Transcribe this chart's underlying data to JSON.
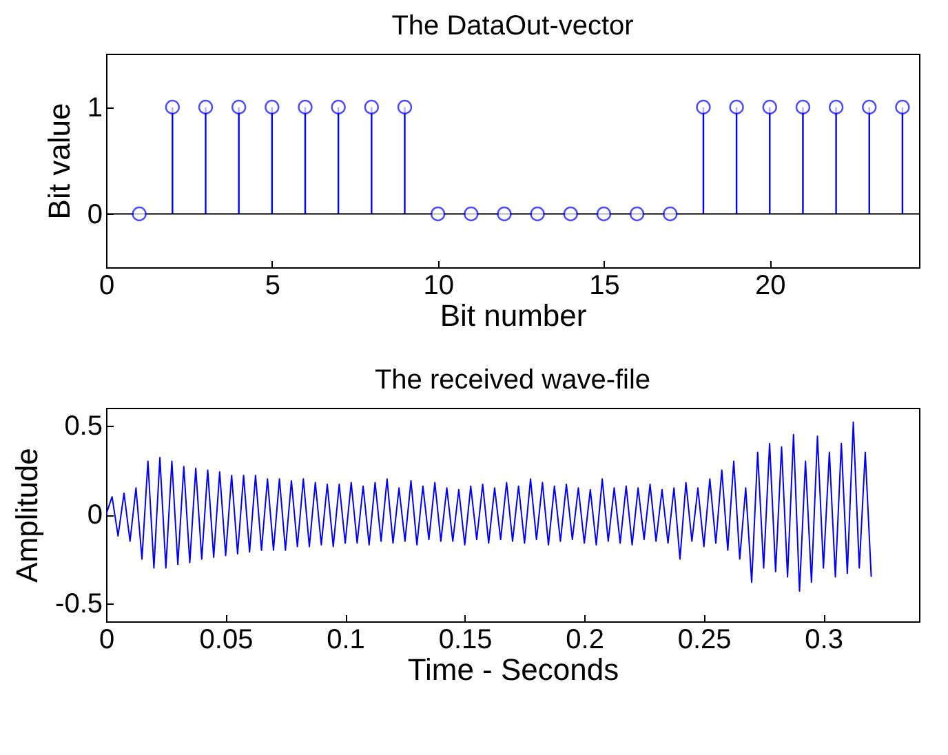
{
  "chart_data": [
    {
      "type": "lollipop",
      "title": "The DataOut-vector",
      "xlabel": "Bit number",
      "ylabel": "Bit value",
      "x": [
        1,
        2,
        3,
        4,
        5,
        6,
        7,
        8,
        9,
        10,
        11,
        12,
        13,
        14,
        15,
        16,
        17,
        18,
        19,
        20,
        21,
        22,
        23,
        24
      ],
      "series": [
        {
          "color": "#0000ff",
          "values": [
            0,
            1,
            1,
            1,
            1,
            1,
            1,
            1,
            1,
            0,
            0,
            0,
            0,
            0,
            0,
            0,
            0,
            1,
            1,
            1,
            1,
            1,
            1,
            1
          ]
        }
      ],
      "xlim": [
        0,
        24.5
      ],
      "xticks": [
        0,
        5,
        10,
        15,
        20
      ],
      "ylim": [
        -0.5,
        1.5
      ],
      "yticks": [
        0,
        1
      ],
      "marker": "circle"
    },
    {
      "type": "line",
      "title": "The received wave-file",
      "xlabel": "Time - Seconds",
      "ylabel": "Amplitude",
      "x": [
        0,
        0.0025,
        0.005,
        0.0075,
        0.01,
        0.0125,
        0.015,
        0.0175,
        0.02,
        0.0225,
        0.025,
        0.0275,
        0.03,
        0.0325,
        0.035,
        0.0375,
        0.04,
        0.0425,
        0.045,
        0.0475,
        0.05,
        0.0525,
        0.055,
        0.0575,
        0.06,
        0.0625,
        0.065,
        0.0675,
        0.07,
        0.0725,
        0.075,
        0.0775,
        0.08,
        0.0825,
        0.085,
        0.0875,
        0.09,
        0.0925,
        0.095,
        0.0975,
        0.1,
        0.1025,
        0.105,
        0.1075,
        0.11,
        0.1125,
        0.115,
        0.1175,
        0.12,
        0.1225,
        0.125,
        0.1275,
        0.13,
        0.1325,
        0.135,
        0.1375,
        0.14,
        0.1425,
        0.145,
        0.1475,
        0.15,
        0.1525,
        0.155,
        0.1575,
        0.16,
        0.1625,
        0.165,
        0.1675,
        0.17,
        0.1725,
        0.175,
        0.1775,
        0.18,
        0.1825,
        0.185,
        0.1875,
        0.19,
        0.1925,
        0.195,
        0.1975,
        0.2,
        0.2025,
        0.205,
        0.2075,
        0.21,
        0.2125,
        0.215,
        0.2175,
        0.22,
        0.2225,
        0.225,
        0.2275,
        0.23,
        0.2325,
        0.235,
        0.2375,
        0.24,
        0.2425,
        0.245,
        0.2475,
        0.25,
        0.2525,
        0.255,
        0.2575,
        0.26,
        0.2625,
        0.265,
        0.2675,
        0.27,
        0.2725,
        0.275,
        0.2775,
        0.28,
        0.2825,
        0.285,
        0.2875,
        0.29,
        0.2925,
        0.295,
        0.2975,
        0.3,
        0.3025,
        0.305,
        0.3075,
        0.31,
        0.3125,
        0.315,
        0.3175,
        0.32
      ],
      "series": [
        {
          "color": "#0000ff",
          "values": [
            0,
            0.1,
            -0.12,
            0.12,
            -0.15,
            0.15,
            -0.25,
            0.3,
            -0.3,
            0.32,
            -0.3,
            0.3,
            -0.28,
            0.27,
            -0.27,
            0.26,
            -0.25,
            0.25,
            -0.24,
            0.24,
            -0.23,
            0.22,
            -0.22,
            0.22,
            -0.21,
            0.22,
            -0.2,
            0.2,
            -0.2,
            0.2,
            -0.2,
            0.19,
            -0.18,
            0.2,
            -0.18,
            0.18,
            -0.17,
            0.17,
            -0.18,
            0.17,
            -0.16,
            0.18,
            -0.16,
            0.16,
            -0.17,
            0.18,
            -0.15,
            0.2,
            -0.16,
            0.15,
            -0.15,
            0.19,
            -0.17,
            0.16,
            -0.14,
            0.18,
            -0.15,
            0.15,
            -0.15,
            0.14,
            -0.17,
            0.16,
            -0.14,
            0.17,
            -0.16,
            0.15,
            -0.14,
            0.18,
            -0.15,
            0.16,
            -0.16,
            0.2,
            -0.14,
            0.18,
            -0.17,
            0.16,
            -0.15,
            0.17,
            -0.14,
            0.15,
            -0.16,
            0.14,
            -0.17,
            0.2,
            -0.15,
            0.15,
            -0.16,
            0.16,
            -0.17,
            0.15,
            -0.14,
            0.17,
            -0.15,
            0.14,
            -0.16,
            0.15,
            -0.25,
            0.18,
            -0.15,
            0.15,
            -0.18,
            0.2,
            -0.16,
            0.25,
            -0.2,
            0.3,
            -0.25,
            0.15,
            -0.38,
            0.35,
            -0.3,
            0.4,
            -0.32,
            0.38,
            -0.35,
            0.45,
            -0.43,
            0.3,
            -0.38,
            0.44,
            -0.3,
            0.35,
            -0.35,
            0.4,
            -0.33,
            0.52,
            -0.3,
            0.35,
            -0.35
          ]
        }
      ],
      "xlim": [
        0,
        0.34
      ],
      "xticks": [
        0,
        0.05,
        0.1,
        0.15,
        0.2,
        0.25,
        0.3
      ],
      "ylim": [
        -0.6,
        0.6
      ],
      "yticks": [
        -0.5,
        0,
        0.5
      ],
      "marker": "none"
    }
  ]
}
